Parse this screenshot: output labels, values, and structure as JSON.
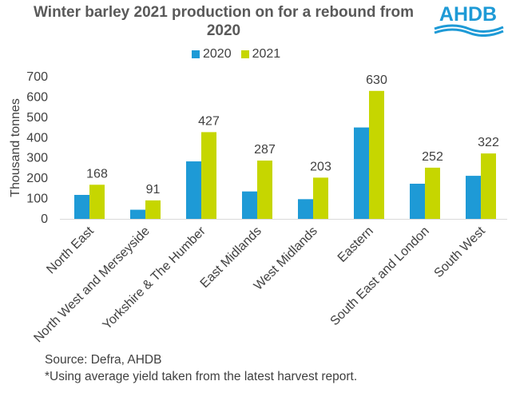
{
  "title_line1": "Winter barley 2021 production on for a rebound from",
  "title_line2": "2020",
  "logo_text": "AHDB",
  "source_note": "Source: Defra, AHDB",
  "yield_note": "*Using average yield taken from the latest harvest report.",
  "colors": {
    "s2020": "#1e9ad6",
    "s2021": "#c6d600",
    "axis": "#d9d9d9",
    "text": "#404040",
    "brand": "#1e9ad6"
  },
  "chart_data": {
    "type": "bar",
    "title": "Winter barley 2021 production on for a rebound from 2020",
    "xlabel": "",
    "ylabel": "Thousand tonnes",
    "ylim": [
      0,
      700
    ],
    "yticks": [
      0,
      100,
      200,
      300,
      400,
      500,
      600,
      700
    ],
    "grid": false,
    "legend_position": "top-center",
    "categories": [
      "North East",
      "North West and Merseyside",
      "Yorkshire & The Humber",
      "East Midlands",
      "West Midlands",
      "Eastern",
      "South East and London",
      "South West"
    ],
    "series": [
      {
        "name": "2020",
        "values": [
          118,
          45,
          283,
          135,
          97,
          450,
          173,
          212
        ],
        "labels": []
      },
      {
        "name": "2021",
        "values": [
          168,
          91,
          427,
          287,
          203,
          630,
          252,
          322
        ],
        "labels": [
          "168",
          "91",
          "427",
          "287",
          "203",
          "630",
          "252",
          "322"
        ]
      }
    ]
  }
}
